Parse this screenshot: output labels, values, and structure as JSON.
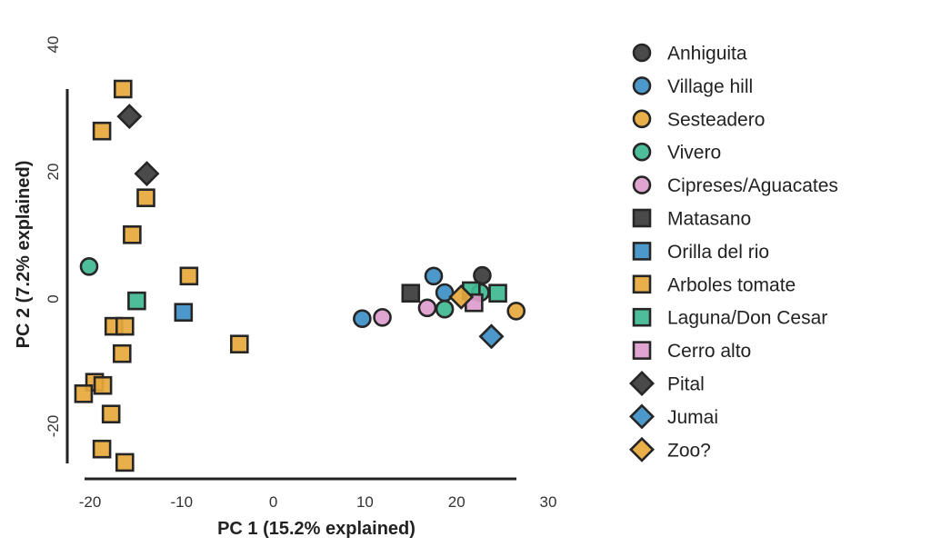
{
  "chart_data": {
    "type": "scatter",
    "title": "",
    "xlabel": "PC 1 (15.2% explained)",
    "ylabel": "PC 2 (7.2% explained)",
    "xlim": [
      -22,
      30
    ],
    "ylim": [
      -28,
      40
    ],
    "xticks": [
      -20,
      -10,
      0,
      10,
      20,
      30
    ],
    "yticks": [
      -20,
      0,
      20,
      40
    ],
    "grid": false,
    "legend_position": "right",
    "colors": {
      "dark": "#3b3b3b",
      "blue": "#3d8fc6",
      "orange": "#e6a83c",
      "green": "#3fb791",
      "pink": "#dc9ccb"
    },
    "series": [
      {
        "name": "Anhiguita",
        "shape": "circle",
        "color": "#3b3b3b",
        "points": [
          [
            22.8,
            3.7
          ]
        ]
      },
      {
        "name": "Village hill",
        "shape": "circle",
        "color": "#3d8fc6",
        "points": [
          [
            9.7,
            -3.1
          ],
          [
            17.5,
            3.6
          ],
          [
            18.7,
            1.0
          ]
        ]
      },
      {
        "name": "Sesteadero",
        "shape": "circle",
        "color": "#e6a83c",
        "points": [
          [
            26.5,
            -1.9
          ]
        ]
      },
      {
        "name": "Vivero",
        "shape": "circle",
        "color": "#3fb791",
        "points": [
          [
            -20.1,
            5.1
          ],
          [
            18.7,
            -1.6
          ],
          [
            22.6,
            1.0
          ]
        ]
      },
      {
        "name": "Cipreses/Aguacates",
        "shape": "circle",
        "color": "#dc9ccb",
        "points": [
          [
            11.9,
            -2.9
          ],
          [
            16.8,
            -1.4
          ]
        ]
      },
      {
        "name": "Matasano",
        "shape": "square",
        "color": "#3b3b3b",
        "points": [
          [
            15.0,
            0.9
          ]
        ]
      },
      {
        "name": "Orilla del rio",
        "shape": "square",
        "color": "#3d8fc6",
        "points": [
          [
            -9.8,
            -2.1
          ]
        ]
      },
      {
        "name": "Arboles tomate",
        "shape": "square",
        "color": "#e6a83c",
        "points": [
          [
            -16.4,
            33.0
          ],
          [
            -18.7,
            26.4
          ],
          [
            -13.9,
            15.9
          ],
          [
            -15.4,
            10.1
          ],
          [
            -9.2,
            3.6
          ],
          [
            -17.4,
            -4.3
          ],
          [
            -16.2,
            -4.3
          ],
          [
            -3.7,
            -7.1
          ],
          [
            -16.5,
            -8.6
          ],
          [
            -19.5,
            -13.1
          ],
          [
            -18.6,
            -13.6
          ],
          [
            -20.7,
            -14.9
          ],
          [
            -17.7,
            -18.1
          ],
          [
            -18.7,
            -23.6
          ],
          [
            -16.2,
            -25.7
          ]
        ]
      },
      {
        "name": "Laguna/Don Cesar",
        "shape": "square",
        "color": "#3fb791",
        "points": [
          [
            -14.9,
            -0.3
          ],
          [
            21.6,
            1.3
          ],
          [
            24.5,
            0.9
          ]
        ]
      },
      {
        "name": "Cerro alto",
        "shape": "square",
        "color": "#dc9ccb",
        "points": [
          [
            21.9,
            -0.6
          ]
        ]
      },
      {
        "name": "Pital",
        "shape": "diamond",
        "color": "#3b3b3b",
        "points": [
          [
            -15.7,
            28.7
          ],
          [
            -13.8,
            19.7
          ]
        ]
      },
      {
        "name": "Jumai",
        "shape": "diamond",
        "color": "#3d8fc6",
        "points": [
          [
            23.8,
            -5.9
          ]
        ]
      },
      {
        "name": "Zoo?",
        "shape": "diamond",
        "color": "#e6a83c",
        "points": [
          [
            20.5,
            0.3
          ]
        ]
      }
    ]
  }
}
